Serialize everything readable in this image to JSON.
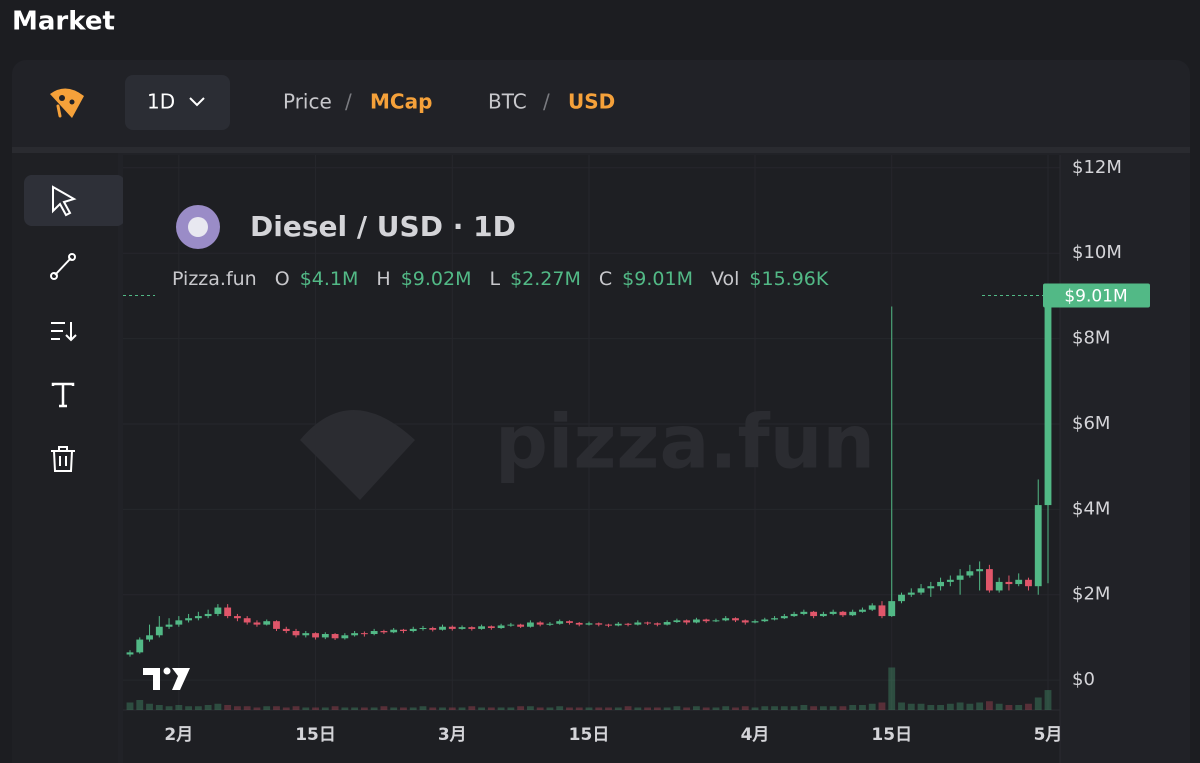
{
  "page": {
    "title": "Market",
    "toolbar": {
      "interval": "1D",
      "price": "Price",
      "sep1": "/",
      "mcap": "MCap",
      "base": "BTC",
      "sep2": "/",
      "quote": "USD"
    }
  },
  "chart_data": {
    "type": "candlestick",
    "title": "Diesel / USD · 1D",
    "watermark": "pizza.fun",
    "legend": {
      "source": "Pizza.fun",
      "items": [
        {
          "key": "O",
          "value": "$4.1M"
        },
        {
          "key": "H",
          "value": "$9.02M"
        },
        {
          "key": "L",
          "value": "$2.27M"
        },
        {
          "key": "C",
          "value": "$9.01M"
        },
        {
          "key": "Vol",
          "value": "$15.96K"
        }
      ]
    },
    "last_price_label": "$9.01M",
    "up_color": "#52b986",
    "down_color": "#e0566a",
    "categories": [
      null,
      null,
      null,
      null,
      null,
      "2月",
      null,
      null,
      null,
      null,
      null,
      null,
      null,
      null,
      null,
      null,
      null,
      null,
      null,
      "15日",
      null,
      null,
      null,
      null,
      null,
      null,
      null,
      null,
      null,
      null,
      null,
      null,
      null,
      "3月",
      null,
      null,
      null,
      null,
      null,
      null,
      null,
      null,
      null,
      null,
      null,
      null,
      null,
      "15日",
      null,
      null,
      null,
      null,
      null,
      null,
      null,
      null,
      null,
      null,
      null,
      null,
      null,
      null,
      null,
      null,
      "4月",
      null,
      null,
      null,
      null,
      null,
      null,
      null,
      null,
      null,
      null,
      null,
      null,
      null,
      "15日",
      null,
      null,
      null,
      null,
      null,
      null,
      null,
      null,
      null,
      null,
      null,
      null,
      null,
      null,
      null,
      "5月"
    ],
    "ohlc": [
      [
        0.6,
        0.7,
        0.55,
        0.65
      ],
      [
        0.65,
        1.0,
        0.62,
        0.95
      ],
      [
        0.95,
        1.3,
        0.9,
        1.05
      ],
      [
        1.05,
        1.5,
        1.0,
        1.25
      ],
      [
        1.25,
        1.45,
        1.2,
        1.3
      ],
      [
        1.3,
        1.5,
        1.25,
        1.4
      ],
      [
        1.4,
        1.55,
        1.35,
        1.45
      ],
      [
        1.45,
        1.6,
        1.4,
        1.5
      ],
      [
        1.5,
        1.65,
        1.45,
        1.55
      ],
      [
        1.55,
        1.78,
        1.5,
        1.7
      ],
      [
        1.7,
        1.78,
        1.45,
        1.5
      ],
      [
        1.5,
        1.55,
        1.38,
        1.45
      ],
      [
        1.45,
        1.5,
        1.3,
        1.35
      ],
      [
        1.35,
        1.4,
        1.25,
        1.3
      ],
      [
        1.3,
        1.42,
        1.28,
        1.38
      ],
      [
        1.38,
        1.4,
        1.15,
        1.2
      ],
      [
        1.2,
        1.25,
        1.1,
        1.15
      ],
      [
        1.15,
        1.2,
        1.0,
        1.05
      ],
      [
        1.05,
        1.15,
        1.0,
        1.1
      ],
      [
        1.1,
        1.12,
        0.95,
        1.0
      ],
      [
        1.0,
        1.12,
        0.96,
        1.08
      ],
      [
        1.08,
        1.1,
        0.94,
        0.98
      ],
      [
        0.98,
        1.1,
        0.95,
        1.05
      ],
      [
        1.05,
        1.15,
        1.02,
        1.1
      ],
      [
        1.1,
        1.14,
        1.02,
        1.08
      ],
      [
        1.08,
        1.2,
        1.05,
        1.15
      ],
      [
        1.15,
        1.18,
        1.08,
        1.12
      ],
      [
        1.12,
        1.22,
        1.1,
        1.18
      ],
      [
        1.18,
        1.2,
        1.1,
        1.15
      ],
      [
        1.15,
        1.25,
        1.12,
        1.2
      ],
      [
        1.2,
        1.27,
        1.16,
        1.22
      ],
      [
        1.22,
        1.25,
        1.14,
        1.18
      ],
      [
        1.18,
        1.3,
        1.16,
        1.25
      ],
      [
        1.25,
        1.28,
        1.16,
        1.2
      ],
      [
        1.2,
        1.28,
        1.18,
        1.24
      ],
      [
        1.24,
        1.26,
        1.16,
        1.2
      ],
      [
        1.2,
        1.3,
        1.18,
        1.26
      ],
      [
        1.26,
        1.28,
        1.18,
        1.22
      ],
      [
        1.22,
        1.32,
        1.2,
        1.28
      ],
      [
        1.28,
        1.34,
        1.25,
        1.3
      ],
      [
        1.3,
        1.32,
        1.22,
        1.25
      ],
      [
        1.25,
        1.4,
        1.23,
        1.35
      ],
      [
        1.35,
        1.38,
        1.26,
        1.3
      ],
      [
        1.3,
        1.36,
        1.27,
        1.32
      ],
      [
        1.32,
        1.42,
        1.3,
        1.38
      ],
      [
        1.38,
        1.4,
        1.3,
        1.34
      ],
      [
        1.34,
        1.36,
        1.26,
        1.3
      ],
      [
        1.3,
        1.37,
        1.28,
        1.33
      ],
      [
        1.33,
        1.35,
        1.26,
        1.3
      ],
      [
        1.3,
        1.32,
        1.24,
        1.28
      ],
      [
        1.28,
        1.36,
        1.26,
        1.32
      ],
      [
        1.32,
        1.34,
        1.26,
        1.3
      ],
      [
        1.3,
        1.4,
        1.28,
        1.35
      ],
      [
        1.35,
        1.37,
        1.29,
        1.33
      ],
      [
        1.33,
        1.35,
        1.26,
        1.3
      ],
      [
        1.3,
        1.4,
        1.28,
        1.36
      ],
      [
        1.36,
        1.44,
        1.34,
        1.4
      ],
      [
        1.4,
        1.42,
        1.3,
        1.35
      ],
      [
        1.35,
        1.46,
        1.33,
        1.42
      ],
      [
        1.42,
        1.44,
        1.34,
        1.38
      ],
      [
        1.38,
        1.44,
        1.36,
        1.4
      ],
      [
        1.4,
        1.5,
        1.38,
        1.45
      ],
      [
        1.45,
        1.47,
        1.36,
        1.4
      ],
      [
        1.4,
        1.42,
        1.3,
        1.35
      ],
      [
        1.35,
        1.42,
        1.33,
        1.38
      ],
      [
        1.38,
        1.46,
        1.36,
        1.42
      ],
      [
        1.42,
        1.5,
        1.4,
        1.45
      ],
      [
        1.45,
        1.55,
        1.43,
        1.5
      ],
      [
        1.5,
        1.6,
        1.48,
        1.55
      ],
      [
        1.55,
        1.65,
        1.52,
        1.6
      ],
      [
        1.6,
        1.62,
        1.45,
        1.5
      ],
      [
        1.5,
        1.6,
        1.48,
        1.55
      ],
      [
        1.55,
        1.65,
        1.52,
        1.6
      ],
      [
        1.6,
        1.62,
        1.48,
        1.52
      ],
      [
        1.52,
        1.65,
        1.5,
        1.6
      ],
      [
        1.6,
        1.7,
        1.58,
        1.65
      ],
      [
        1.65,
        1.8,
        1.62,
        1.75
      ],
      [
        1.75,
        1.85,
        1.45,
        1.5
      ],
      [
        1.5,
        8.75,
        1.48,
        1.85
      ],
      [
        1.85,
        2.05,
        1.8,
        2.0
      ],
      [
        2.0,
        2.15,
        1.95,
        2.05
      ],
      [
        2.05,
        2.25,
        2.0,
        2.15
      ],
      [
        2.15,
        2.3,
        1.95,
        2.2
      ],
      [
        2.2,
        2.4,
        2.1,
        2.3
      ],
      [
        2.3,
        2.45,
        2.2,
        2.35
      ],
      [
        2.35,
        2.6,
        2.0,
        2.45
      ],
      [
        2.45,
        2.7,
        2.4,
        2.55
      ],
      [
        2.55,
        2.78,
        2.1,
        2.6
      ],
      [
        2.6,
        2.7,
        2.05,
        2.1
      ],
      [
        2.1,
        2.4,
        2.05,
        2.3
      ],
      [
        2.3,
        2.45,
        2.1,
        2.25
      ],
      [
        2.25,
        2.5,
        2.2,
        2.35
      ],
      [
        2.35,
        2.4,
        2.1,
        2.2
      ],
      [
        2.2,
        4.7,
        2.0,
        4.1
      ],
      [
        4.1,
        9.02,
        2.27,
        9.01
      ]
    ],
    "volume": [
      6,
      8,
      5,
      4,
      3,
      4,
      3,
      3,
      4,
      5,
      4,
      3,
      3,
      2,
      3,
      3,
      2,
      3,
      2,
      2,
      2,
      3,
      2,
      2,
      2,
      2,
      3,
      2,
      2,
      2,
      3,
      2,
      2,
      2,
      2,
      3,
      2,
      2,
      2,
      2,
      3,
      3,
      2,
      2,
      3,
      2,
      2,
      2,
      2,
      2,
      2,
      3,
      2,
      2,
      2,
      2,
      3,
      2,
      3,
      2,
      2,
      3,
      2,
      3,
      2,
      3,
      3,
      3,
      3,
      4,
      3,
      3,
      3,
      3,
      4,
      4,
      5,
      6,
      34,
      6,
      5,
      5,
      4,
      4,
      5,
      6,
      5,
      6,
      7,
      5,
      4,
      4,
      5,
      10,
      15.96
    ],
    "ylim": [
      -0.7,
      12.3
    ],
    "yticks": [
      {
        "value": 0,
        "label": "$0"
      },
      {
        "value": 2,
        "label": "$2M"
      },
      {
        "value": 4,
        "label": "$4M"
      },
      {
        "value": 6,
        "label": "$6M"
      },
      {
        "value": 8,
        "label": "$8M"
      },
      {
        "value": 10,
        "label": "$10M"
      },
      {
        "value": 12,
        "label": "$12M"
      }
    ],
    "grid": true
  }
}
